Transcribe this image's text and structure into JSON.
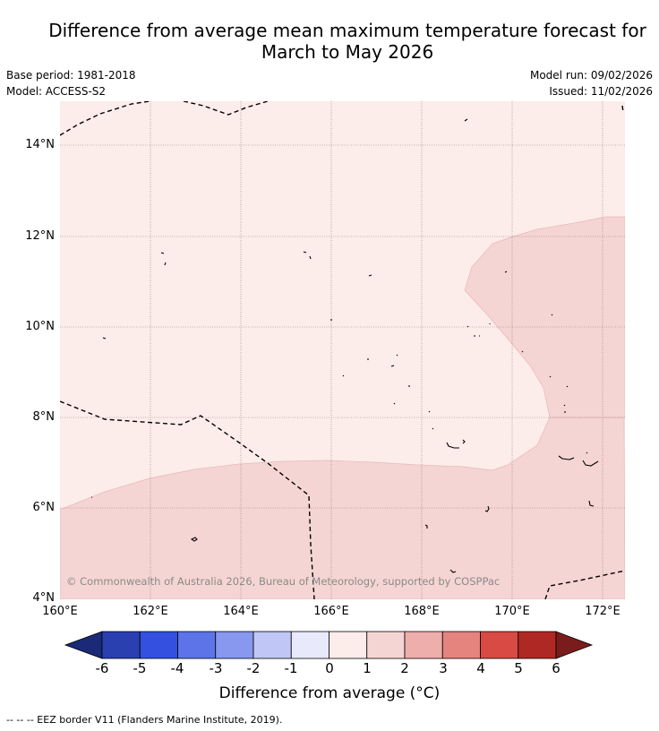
{
  "title_line1": "Difference from average mean maximum temperature forecast for",
  "title_line2": "March to May 2026",
  "base_period": "Base period: 1981-2018",
  "model": "Model: ACCESS-S2",
  "model_run": "Model run: 09/02/2026",
  "issued": "Issued: 11/02/2026",
  "copyright": "© Commonwealth of Australia 2026, Bureau of Meteorology, supported by COSPPac",
  "footnote": "--  --  -- EEZ border V11 (Flanders Marine Institute, 2019).",
  "colorbar": {
    "title": "Difference from average (°C)",
    "ticks": [
      "-6",
      "-5",
      "-4",
      "-3",
      "-2",
      "-1",
      "0",
      "1",
      "2",
      "3",
      "4",
      "5",
      "6"
    ],
    "colors": [
      "#1a2a78",
      "#2a3fb0",
      "#3350e0",
      "#5c74e8",
      "#8798ee",
      "#c0c6f5",
      "#e8eafc",
      "#fcecea",
      "#f5d5d3",
      "#eeaeab",
      "#e5847f",
      "#d94a44",
      "#b02823",
      "#7a1c1c"
    ]
  },
  "map": {
    "lon_labels": [
      "160°E",
      "162°E",
      "164°E",
      "166°E",
      "168°E",
      "170°E",
      "172°E"
    ],
    "lat_labels": [
      "14°N",
      "12°N",
      "10°N",
      "8°N",
      "6°N",
      "4°N"
    ],
    "lon_range": [
      160,
      172.5
    ],
    "lat_range": [
      4,
      15.1
    ],
    "regions": [
      {
        "category": "0 to 1",
        "color": "#fcecea"
      },
      {
        "category": "1 to 2",
        "color": "#f5d5d3"
      }
    ]
  }
}
